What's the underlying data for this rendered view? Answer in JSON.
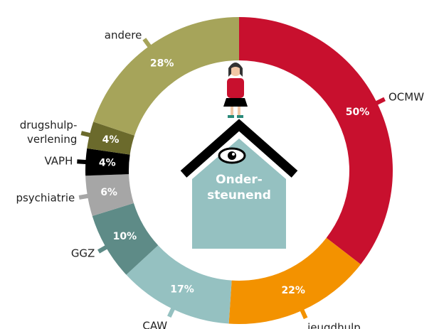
{
  "chart_data": {
    "type": "donut",
    "categories": [
      "OCMW",
      "jeugdhulp",
      "CAW",
      "GGZ",
      "psychiatrie",
      "VAPH",
      "drugshulp-\nverlening",
      "andere"
    ],
    "values": [
      50,
      22,
      17,
      10,
      6,
      4,
      4,
      28
    ],
    "value_labels": [
      "50%",
      "22%",
      "17%",
      "10%",
      "6%",
      "4%",
      "4%",
      "28%"
    ],
    "colors": [
      "#c8102e",
      "#f39200",
      "#95c1c1",
      "#5e8b87",
      "#a6a6a6",
      "#000000",
      "#6b6a2c",
      "#a6a45a"
    ],
    "center_label": [
      "Onder-",
      "steunend"
    ]
  }
}
